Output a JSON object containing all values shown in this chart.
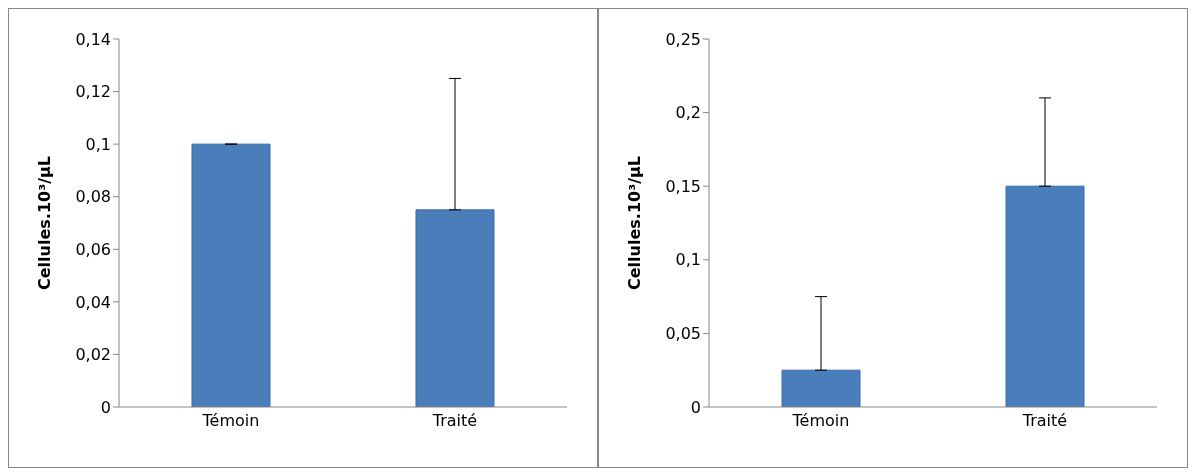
{
  "chart_data": [
    {
      "type": "bar",
      "ylabel": "Cellules.10³/µL",
      "categories": [
        "Témoin",
        "Traité"
      ],
      "values": [
        0.1,
        0.075
      ],
      "errors": [
        0,
        0.05
      ],
      "color": "#4a7ebb",
      "ylim": [
        0,
        0.14
      ],
      "yticks": [
        {
          "value": 0,
          "label": "0"
        },
        {
          "value": 0.02,
          "label": "0,02"
        },
        {
          "value": 0.04,
          "label": "0,04"
        },
        {
          "value": 0.06,
          "label": "0,06"
        },
        {
          "value": 0.08,
          "label": "0,08"
        },
        {
          "value": 0.1,
          "label": "0,1"
        },
        {
          "value": 0.12,
          "label": "0,12"
        },
        {
          "value": 0.14,
          "label": "0,14"
        }
      ],
      "grid": false,
      "legend": false
    },
    {
      "type": "bar",
      "ylabel": "Cellules.10³/µL",
      "categories": [
        "Témoin",
        "Traité"
      ],
      "values": [
        0.025,
        0.15
      ],
      "errors": [
        0.05,
        0.06
      ],
      "color": "#4a7ebb",
      "ylim": [
        0,
        0.25
      ],
      "yticks": [
        {
          "value": 0,
          "label": "0"
        },
        {
          "value": 0.05,
          "label": "0,05"
        },
        {
          "value": 0.1,
          "label": "0,1"
        },
        {
          "value": 0.15,
          "label": "0,15"
        },
        {
          "value": 0.2,
          "label": "0,2"
        },
        {
          "value": 0.25,
          "label": "0,25"
        }
      ],
      "grid": false,
      "legend": false
    }
  ]
}
